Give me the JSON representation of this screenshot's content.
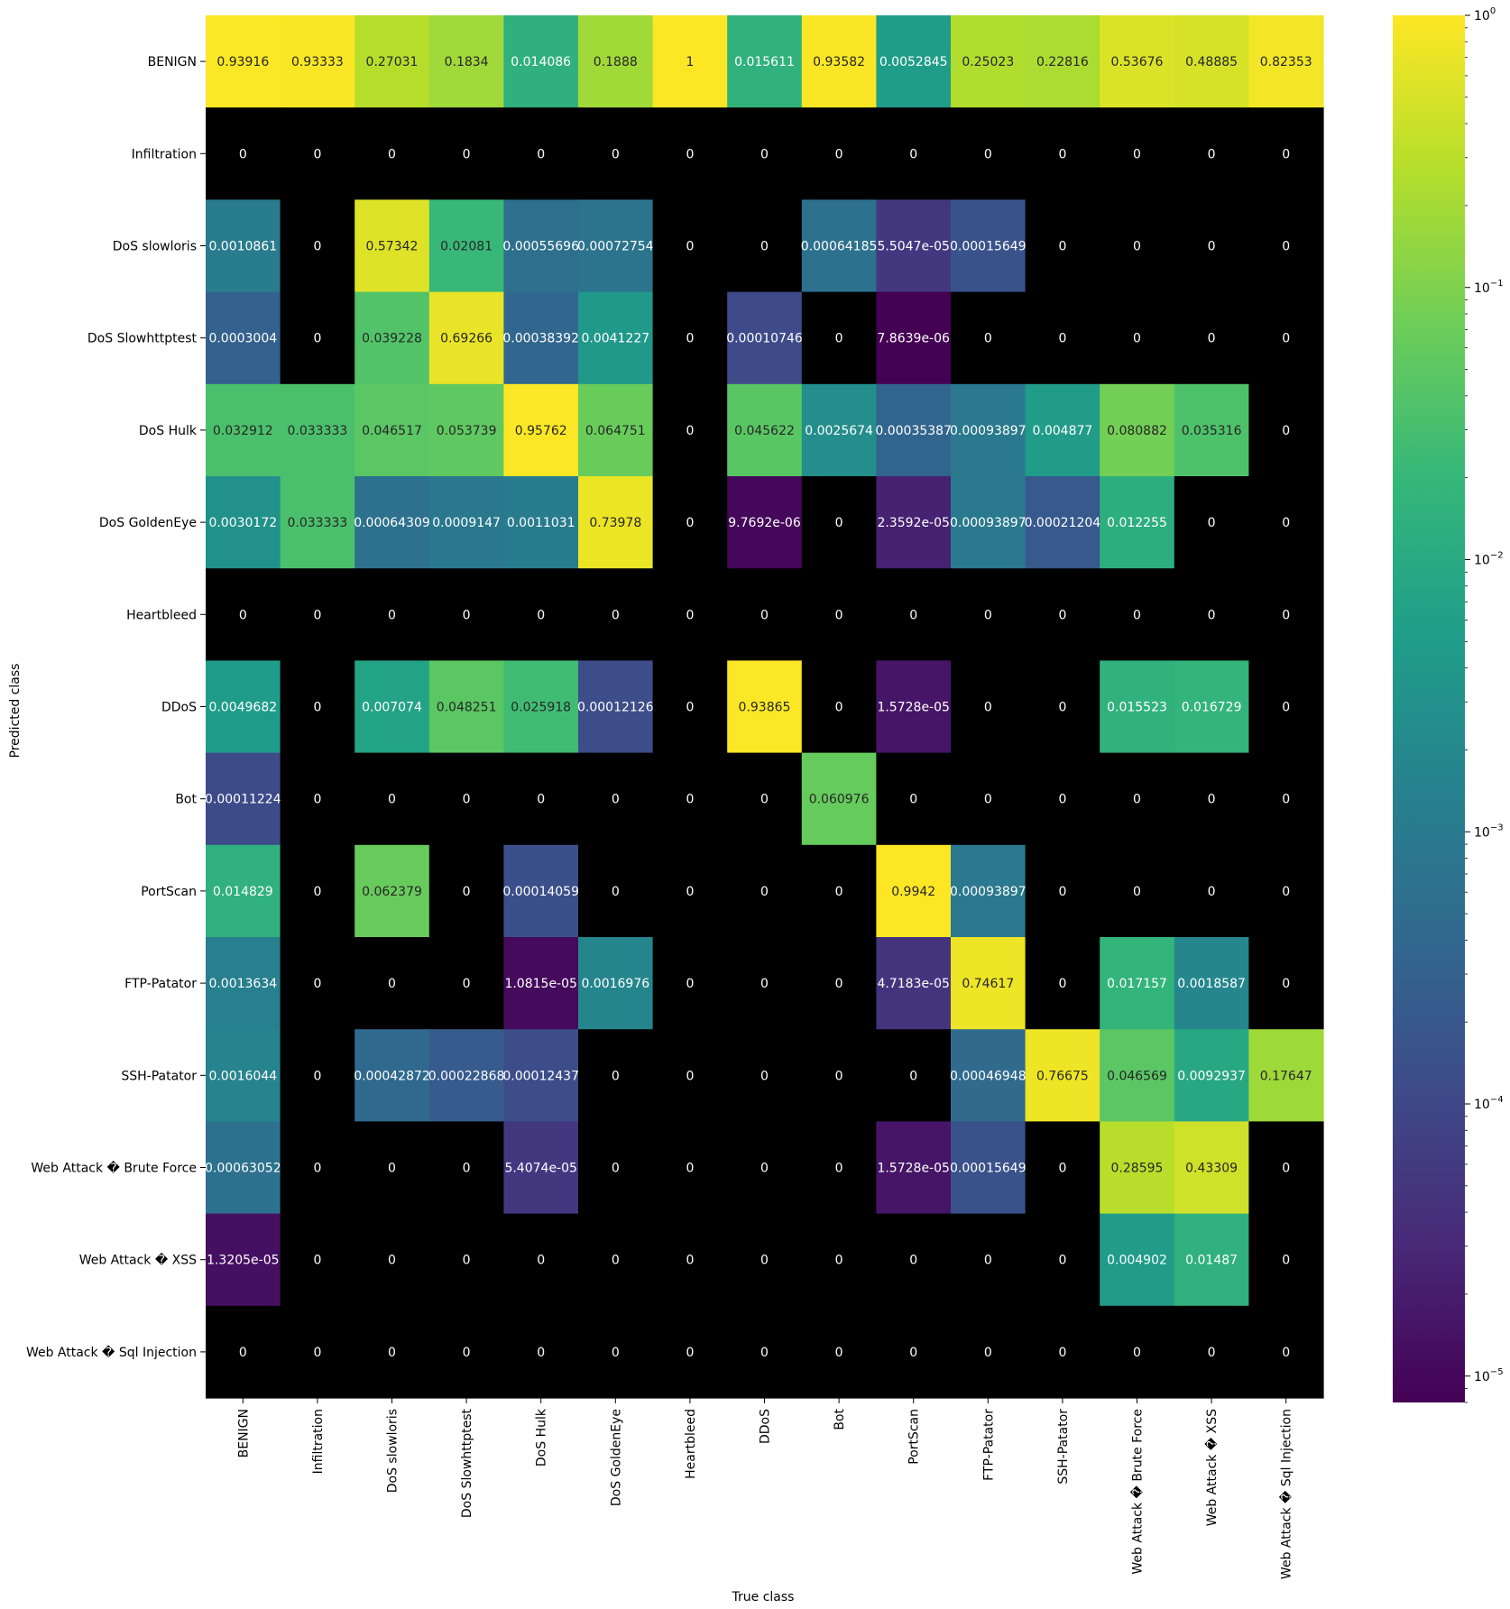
{
  "chart_data": {
    "type": "heatmap",
    "title": "",
    "xlabel": "True class",
    "ylabel": "Predicted class",
    "x_categories": [
      "BENIGN",
      "Infiltration",
      "DoS slowloris",
      "DoS Slowhttptest",
      "DoS Hulk",
      "DoS GoldenEye",
      "Heartbleed",
      "DDoS",
      "Bot",
      "PortScan",
      "FTP-Patator",
      "SSH-Patator",
      "Web Attack � Brute Force",
      "Web Attack � XSS",
      "Web Attack � Sql Injection"
    ],
    "y_categories": [
      "BENIGN",
      "Infiltration",
      "DoS slowloris",
      "DoS Slowhttptest",
      "DoS Hulk",
      "DoS GoldenEye",
      "Heartbleed",
      "DDoS",
      "Bot",
      "PortScan",
      "FTP-Patator",
      "SSH-Patator",
      "Web Attack � Brute Force",
      "Web Attack � XSS",
      "Web Attack � Sql Injection"
    ],
    "cell_labels": [
      [
        "0.93916",
        "0.93333",
        "0.27031",
        "0.1834",
        "0.014086",
        "0.1888",
        "1",
        "0.015611",
        "0.93582",
        "0.0052845",
        "0.25023",
        "0.22816",
        "0.53676",
        "0.48885",
        "0.82353"
      ],
      [
        "0",
        "0",
        "0",
        "0",
        "0",
        "0",
        "0",
        "0",
        "0",
        "0",
        "0",
        "0",
        "0",
        "0",
        "0"
      ],
      [
        "0.0010861",
        "0",
        "0.57342",
        "0.02081",
        "0.00055696",
        "0.00072754",
        "0",
        "0",
        "0.00064185",
        "5.5047e-05",
        "0.00015649",
        "0",
        "0",
        "0",
        "0"
      ],
      [
        "0.0003004",
        "0",
        "0.039228",
        "0.69266",
        "0.00038392",
        "0.0041227",
        "0",
        "0.00010746",
        "0",
        "7.8639e-06",
        "0",
        "0",
        "0",
        "0",
        "0"
      ],
      [
        "0.032912",
        "0.033333",
        "0.046517",
        "0.053739",
        "0.95762",
        "0.064751",
        "0",
        "0.045622",
        "0.0025674",
        "0.00035387",
        "0.00093897",
        "0.004877",
        "0.080882",
        "0.035316",
        "0"
      ],
      [
        "0.0030172",
        "0.033333",
        "0.00064309",
        "0.0009147",
        "0.0011031",
        "0.73978",
        "0",
        "9.7692e-06",
        "0",
        "2.3592e-05",
        "0.00093897",
        "0.00021204",
        "0.012255",
        "0",
        "0"
      ],
      [
        "0",
        "0",
        "0",
        "0",
        "0",
        "0",
        "0",
        "0",
        "0",
        "0",
        "0",
        "0",
        "0",
        "0",
        "0"
      ],
      [
        "0.0049682",
        "0",
        "0.007074",
        "0.048251",
        "0.025918",
        "0.00012126",
        "0",
        "0.93865",
        "0",
        "1.5728e-05",
        "0",
        "0",
        "0.015523",
        "0.016729",
        "0"
      ],
      [
        "0.00011224",
        "0",
        "0",
        "0",
        "0",
        "0",
        "0",
        "0",
        "0.060976",
        "0",
        "0",
        "0",
        "0",
        "0",
        "0"
      ],
      [
        "0.014829",
        "0",
        "0.062379",
        "0",
        "0.00014059",
        "0",
        "0",
        "0",
        "0",
        "0.9942",
        "0.00093897",
        "0",
        "0",
        "0",
        "0"
      ],
      [
        "0.0013634",
        "0",
        "0",
        "0",
        "1.0815e-05",
        "0.0016976",
        "0",
        "0",
        "0",
        "4.7183e-05",
        "0.74617",
        "0",
        "0.017157",
        "0.0018587",
        "0"
      ],
      [
        "0.0016044",
        "0",
        "0.00042872",
        "0.00022868",
        "0.00012437",
        "0",
        "0",
        "0",
        "0",
        "0",
        "0.00046948",
        "0.76675",
        "0.046569",
        "0.0092937",
        "0.17647"
      ],
      [
        "0.00063052",
        "0",
        "0",
        "0",
        "5.4074e-05",
        "0",
        "0",
        "0",
        "0",
        "1.5728e-05",
        "0.00015649",
        "0",
        "0.28595",
        "0.43309",
        "0"
      ],
      [
        "1.3205e-05",
        "0",
        "0",
        "0",
        "0",
        "0",
        "0",
        "0",
        "0",
        "0",
        "0",
        "0",
        "0.004902",
        "0.01487",
        "0"
      ],
      [
        "0",
        "0",
        "0",
        "0",
        "0",
        "0",
        "0",
        "0",
        "0",
        "0",
        "0",
        "0",
        "0",
        "0",
        "0"
      ]
    ],
    "color_scale": {
      "colormap": "viridis",
      "scale": "log",
      "range": [
        8e-06,
        1
      ],
      "zero_color": "#000000",
      "ticks": [
        {
          "value": 1,
          "mantissa": "10",
          "exponent": "0"
        },
        {
          "value": 0.1,
          "mantissa": "10",
          "exponent": "−1"
        },
        {
          "value": 0.01,
          "mantissa": "10",
          "exponent": "−2"
        },
        {
          "value": 0.001,
          "mantissa": "10",
          "exponent": "−3"
        },
        {
          "value": 0.0001,
          "mantissa": "10",
          "exponent": "−4"
        },
        {
          "value": 1e-05,
          "mantissa": "10",
          "exponent": "−5"
        }
      ]
    },
    "grid": false,
    "legend": "colorbar-right"
  }
}
